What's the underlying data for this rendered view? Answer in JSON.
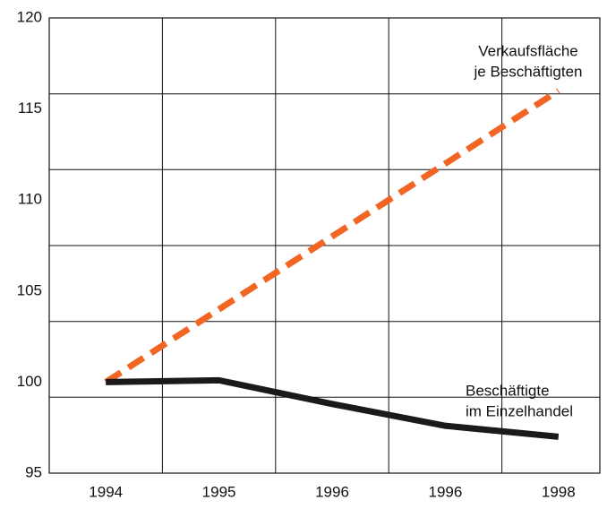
{
  "chart_data": {
    "type": "line",
    "categories": [
      "1994",
      "1995",
      "1996",
      "1996",
      "1998"
    ],
    "series": [
      {
        "label": [
          "Verkaufsfläche",
          "je Beschäftigten"
        ],
        "color": "#f26522",
        "dashed": true,
        "values": [
          100,
          104,
          108,
          112,
          116
        ]
      },
      {
        "label": [
          "Beschäftigte",
          "im Einzelhandel"
        ],
        "color": "#1a1a1a",
        "dashed": false,
        "values": [
          100,
          100.1,
          98.8,
          97.6,
          97.0
        ]
      }
    ],
    "ylim": [
      95,
      120
    ],
    "yticks": [
      95,
      100,
      105,
      110,
      115,
      120
    ],
    "ygrid": [
      99.17,
      103.33,
      107.5,
      111.67,
      115.83
    ],
    "grid": true
  }
}
